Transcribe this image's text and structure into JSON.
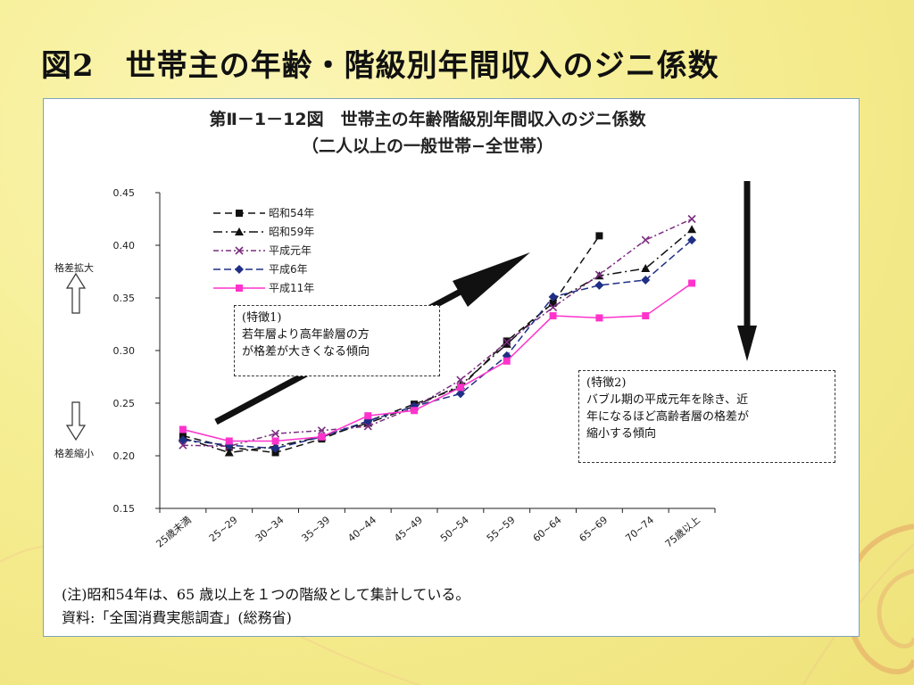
{
  "slide": {
    "title": "図2　世帯主の年齢・階級別年間収入のジニ係数"
  },
  "chart_data": {
    "type": "line",
    "title": "第Ⅱ－1－12図　世帯主の年齢階級別年間収入のジニ係数",
    "subtitle": "（二人以上の一般世帯−全世帯）",
    "categories": [
      "25歳未満",
      "25~29",
      "30~34",
      "35~39",
      "40~44",
      "45~49",
      "50~54",
      "55~59",
      "60~64",
      "65~69",
      "70~74",
      "75歳以上"
    ],
    "ylim": [
      0.15,
      0.45
    ],
    "yticks": [
      "0.45",
      "0.40",
      "0.35",
      "0.30",
      "0.25",
      "0.20",
      "0.15"
    ],
    "y_side_labels": {
      "up": "格差拡大",
      "down": "格差縮小"
    },
    "legend_placement": "top-left",
    "series": [
      {
        "name": "昭和54年",
        "color": "#111111",
        "dash": "8,5",
        "marker": "square",
        "values": [
          0.219,
          0.208,
          0.203,
          0.216,
          0.233,
          0.249,
          0.265,
          0.309,
          0.345,
          0.409,
          null,
          null
        ]
      },
      {
        "name": "昭和59年",
        "color": "#111111",
        "dash": "10,4,2,4",
        "marker": "triangle",
        "values": [
          0.217,
          0.203,
          0.209,
          0.218,
          0.231,
          0.247,
          0.267,
          0.306,
          0.346,
          0.371,
          0.378,
          0.415
        ]
      },
      {
        "name": "平成元年",
        "color": "#7b2d7f",
        "dash": "6,3,2,3",
        "marker": "cross",
        "values": [
          0.21,
          0.209,
          0.221,
          0.224,
          0.228,
          0.246,
          0.272,
          0.308,
          0.341,
          0.372,
          0.405,
          0.425
        ]
      },
      {
        "name": "平成6年",
        "color": "#1f2f86",
        "dash": "8,4",
        "marker": "diamond",
        "values": [
          0.215,
          0.21,
          0.207,
          0.218,
          0.233,
          0.247,
          0.259,
          0.295,
          0.351,
          0.362,
          0.367,
          0.405
        ]
      },
      {
        "name": "平成11年",
        "color": "#ff33cc",
        "dash": "",
        "marker": "square",
        "values": [
          0.225,
          0.214,
          0.214,
          0.218,
          0.238,
          0.243,
          0.265,
          0.29,
          0.333,
          0.331,
          0.333,
          0.364
        ]
      }
    ],
    "annotations": [
      {
        "lines": [
          "(特徴1)",
          "若年層より高年齢層の方",
          "が格差が大きくなる傾向"
        ]
      },
      {
        "lines": [
          "(特徴2)",
          "バブル期の平成元年を除き、近",
          "年になるほど高齢者層の格差が",
          "縮小する傾向"
        ]
      }
    ]
  },
  "notes": {
    "note_1": "(注)昭和54年は、65 歳以上を１つの階級として集計している。",
    "note_2": "資料:「全国消費実態調査」(総務省)"
  }
}
